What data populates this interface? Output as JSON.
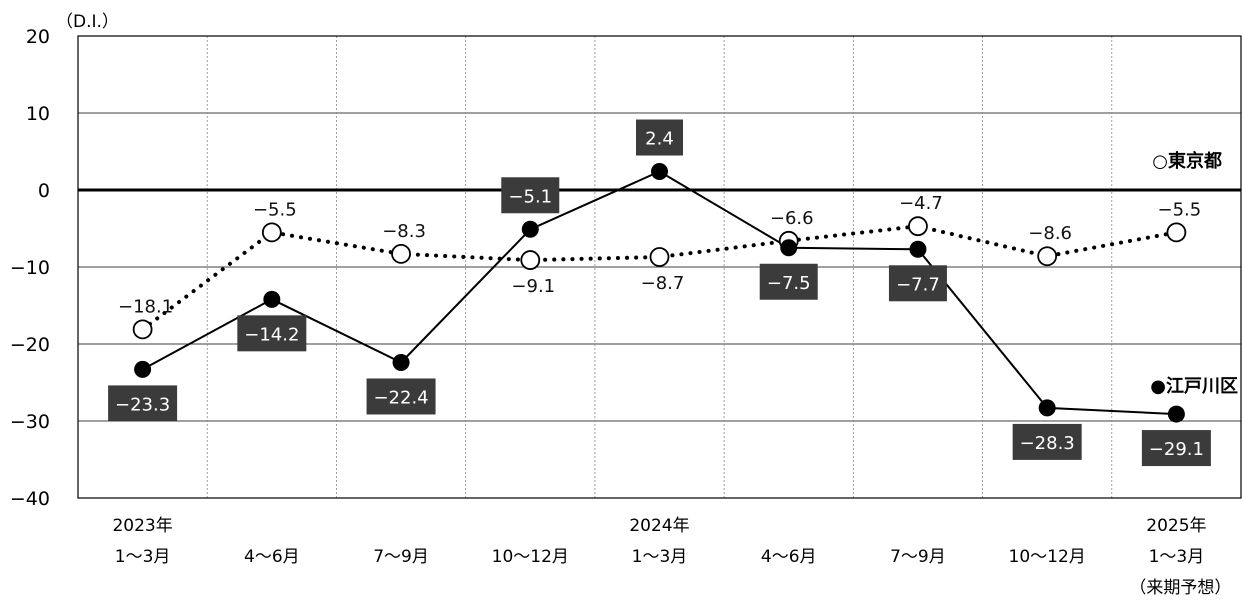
{
  "chart_data": {
    "type": "line",
    "unit_label": "（D.I.）",
    "ylim": [
      -40,
      20
    ],
    "y_ticks": [
      20,
      10,
      0,
      -10,
      -20,
      -30,
      -40
    ],
    "y_tick_labels": [
      "20",
      "10",
      "0",
      "−10",
      "−20",
      "−30",
      "−40"
    ],
    "grid": true,
    "categories": [
      {
        "year": "2023年",
        "period": "1～3月",
        "note": ""
      },
      {
        "year": "",
        "period": "4～6月",
        "note": ""
      },
      {
        "year": "",
        "period": "7～9月",
        "note": ""
      },
      {
        "year": "",
        "period": "10～12月",
        "note": ""
      },
      {
        "year": "2024年",
        "period": "1～3月",
        "note": ""
      },
      {
        "year": "",
        "period": "4～6月",
        "note": ""
      },
      {
        "year": "",
        "period": "7～9月",
        "note": ""
      },
      {
        "year": "",
        "period": "10～12月",
        "note": ""
      },
      {
        "year": "2025年",
        "period": "1～3月",
        "note": "（来期予想）"
      }
    ],
    "series": [
      {
        "name": "東京都",
        "legend_label": "○東京都",
        "style": "dotted",
        "marker": "open-circle",
        "values": [
          -18.1,
          -5.5,
          -8.3,
          -9.1,
          -8.7,
          -6.6,
          -4.7,
          -8.6,
          -5.5
        ],
        "labels": [
          "−18.1",
          "−5.5",
          "−8.3",
          "−9.1",
          "−8.7",
          "−6.6",
          "−4.7",
          "−8.6",
          "−5.5"
        ],
        "label_positions": [
          "above",
          "above",
          "above",
          "below",
          "below",
          "above",
          "above",
          "above",
          "above"
        ]
      },
      {
        "name": "江戸川区",
        "legend_label": "●江戸川区",
        "style": "solid",
        "marker": "filled-circle",
        "values": [
          -23.3,
          -14.2,
          -22.4,
          -5.1,
          2.4,
          -7.5,
          -7.7,
          -28.3,
          -29.1
        ],
        "labels": [
          "−23.3",
          "−14.2",
          "−22.4",
          "−5.1",
          "2.4",
          "−7.5",
          "−7.7",
          "−28.3",
          "−29.1"
        ],
        "label_positions": [
          "below",
          "below",
          "below",
          "above",
          "above",
          "below",
          "below",
          "below",
          "below"
        ]
      }
    ]
  }
}
